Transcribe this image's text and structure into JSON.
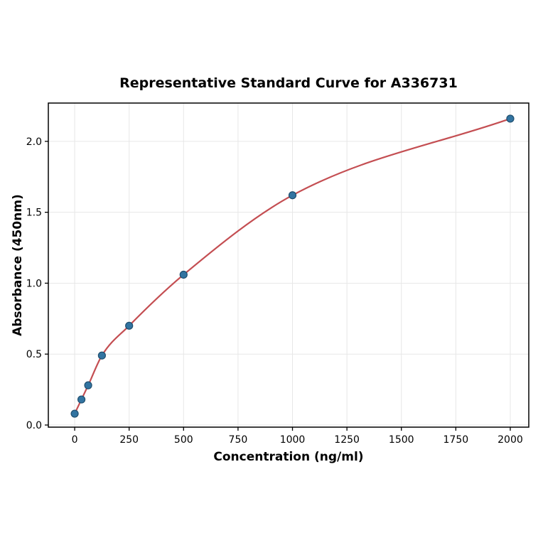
{
  "chart_data": {
    "type": "scatter",
    "fit_curve": true,
    "title": "Representative Standard Curve for A336731",
    "xlabel": "Concentration (ng/ml)",
    "ylabel": "Absorbance (450nm)",
    "xlim": [
      -121,
      2085
    ],
    "ylim": [
      -0.015,
      2.27
    ],
    "x_ticks": [
      0,
      250,
      500,
      750,
      1000,
      1250,
      1500,
      1750,
      2000
    ],
    "x_tick_labels": [
      "0",
      "250",
      "500",
      "750",
      "1000",
      "1250",
      "1500",
      "1750",
      "2000"
    ],
    "y_ticks": [
      0.0,
      0.5,
      1.0,
      1.5,
      2.0
    ],
    "y_tick_labels": [
      "0.0",
      "0.5",
      "1.0",
      "1.5",
      "2.0"
    ],
    "grid": true,
    "legend": false,
    "points": {
      "x": [
        0,
        31,
        62,
        125,
        250,
        500,
        1000,
        2000
      ],
      "y": [
        0.08,
        0.18,
        0.28,
        0.49,
        0.7,
        1.06,
        1.62,
        2.16
      ]
    },
    "colors": {
      "curve": "#c44e52",
      "point_fill": "#3274a1",
      "point_edge": "#1f4e6e",
      "grid": "#e7e7e7",
      "axis": "#000000",
      "background": "#ffffff"
    }
  }
}
